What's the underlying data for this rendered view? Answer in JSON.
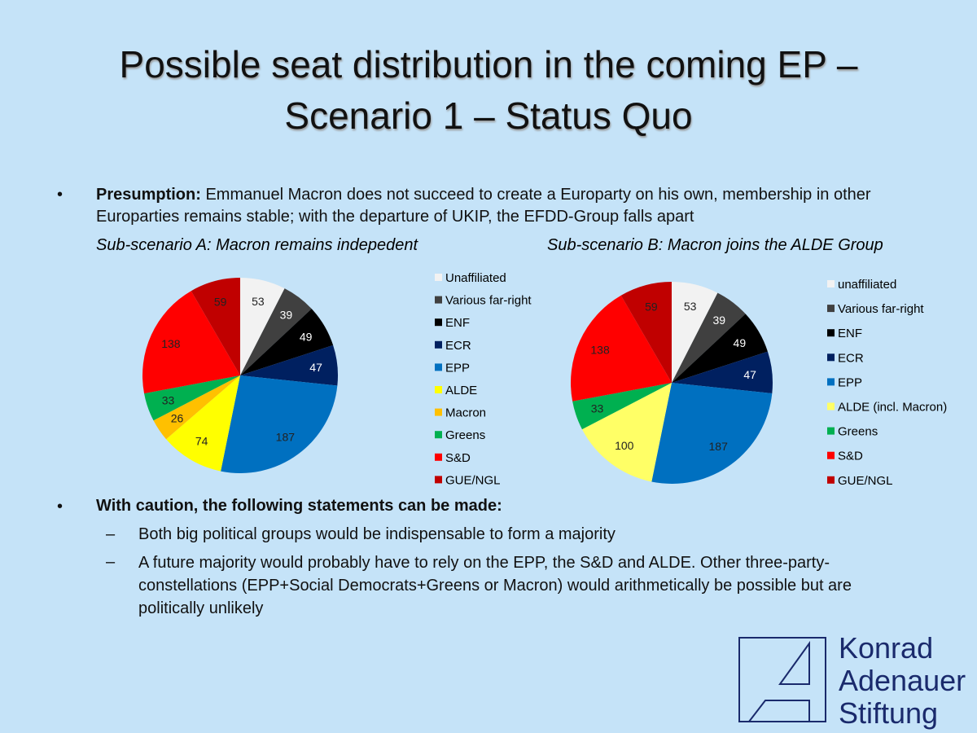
{
  "title_lines": [
    "Possible seat distribution in the coming EP –",
    "Scenario 1 – Status Quo"
  ],
  "presumption": {
    "label": "Presumption:",
    "text": " Emmanuel Macron does not succeed to create a Europarty on his own, membership in other Europarties remains stable; with the departure of UKIP, the EFDD-Group falls apart"
  },
  "statements": {
    "heading": "With caution, the following statements can be made:",
    "items": [
      "Both big political groups would be indispensable to form a majority",
      "A future majority would probably have to rely on the EPP, the S&D and ALDE. Other three-party-constellations (EPP+Social Democrats+Greens or Macron) would arithmetically be possible but are politically unlikely"
    ]
  },
  "logo": [
    "Konrad",
    "Adenauer",
    "Stiftung"
  ],
  "chart_data": [
    {
      "type": "pie",
      "title": "Sub-scenario A: Macron remains indepedent",
      "categories": [
        "Unaffiliated",
        "Various far-right",
        "ENF",
        "ECR",
        "EPP",
        "ALDE",
        "Macron",
        "Greens",
        "S&D",
        "GUE/NGL"
      ],
      "values": [
        53,
        39,
        49,
        47,
        187,
        74,
        26,
        33,
        138,
        59
      ],
      "colors": [
        "#f2f2f2",
        "#404040",
        "#000000",
        "#002060",
        "#0070c0",
        "#ffff00",
        "#ffc000",
        "#00b050",
        "#ff0000",
        "#c00000"
      ]
    },
    {
      "type": "pie",
      "title": "Sub-scenario B: Macron joins the ALDE Group",
      "categories": [
        "unaffiliated",
        "Various far-right",
        "ENF",
        "ECR",
        "EPP",
        "ALDE (incl. Macron)",
        "Greens",
        "S&D",
        "GUE/NGL"
      ],
      "values": [
        53,
        39,
        49,
        47,
        187,
        100,
        33,
        138,
        59
      ],
      "colors": [
        "#f2f2f2",
        "#404040",
        "#000000",
        "#002060",
        "#0070c0",
        "#ffff66",
        "#00b050",
        "#ff0000",
        "#c00000"
      ]
    }
  ]
}
